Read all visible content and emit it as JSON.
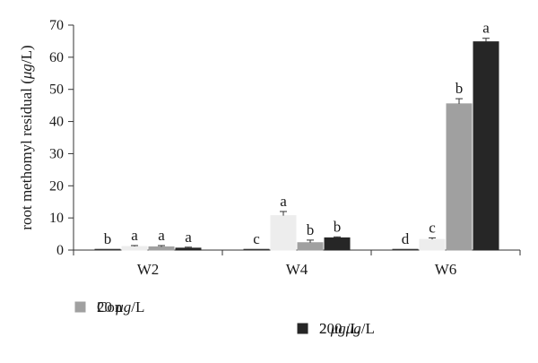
{
  "chart_data": {
    "type": "bar",
    "ylabel_parts": [
      "root methomyl residual (",
      "μg",
      "/L)"
    ],
    "ylim": [
      0,
      70
    ],
    "yticks": [
      0,
      10,
      20,
      30,
      40,
      50,
      60,
      70
    ],
    "categories": [
      "W2",
      "W4",
      "W6"
    ],
    "series": [
      {
        "name": "Con",
        "name_parts": [
          "Con"
        ],
        "color": "#ffffff",
        "stroke": "#333333",
        "values": [
          0.1,
          0.1,
          0.2
        ],
        "errors": [
          0,
          0,
          0
        ],
        "labels": [
          "b",
          "c",
          "d"
        ]
      },
      {
        "name": "2 μg/L",
        "name_parts": [
          "2 ",
          "μg",
          "/L"
        ],
        "color": "#ededed",
        "stroke": "#ededed",
        "values": [
          1.1,
          10.7,
          3.3
        ],
        "errors": [
          0.3,
          1.3,
          0.5
        ],
        "labels": [
          "a",
          "a",
          "c"
        ]
      },
      {
        "name": "20 μg/L",
        "name_parts": [
          "20 ",
          "μg",
          "/L"
        ],
        "color": "#a0a0a0",
        "stroke": "#a0a0a0",
        "values": [
          1.0,
          2.3,
          45.5
        ],
        "errors": [
          0.4,
          0.8,
          1.6
        ],
        "labels": [
          "a",
          "b",
          "b"
        ]
      },
      {
        "name": "200 μg/L",
        "name_parts": [
          "200 ",
          "μg",
          "/L"
        ],
        "color": "#262626",
        "stroke": "#262626",
        "values": [
          0.6,
          3.8,
          64.8
        ],
        "errors": [
          0.3,
          0.3,
          1.1
        ],
        "labels": [
          "a",
          "b",
          "a"
        ]
      }
    ],
    "grid": false,
    "legend_position": "bottom"
  }
}
